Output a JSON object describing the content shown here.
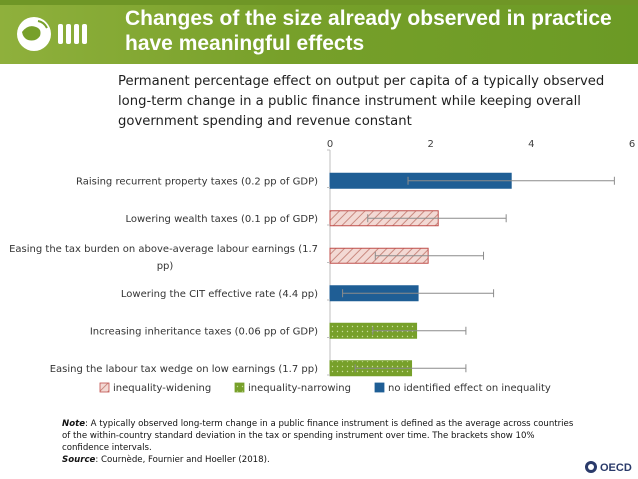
{
  "header": {
    "title_line1": "Changes of the size already observed in practice",
    "title_line2": "have meaningful effects",
    "logo_text": "OECD"
  },
  "subtitle": {
    "line1": "Permanent percentage effect on output per capita of a typically observed",
    "line2": "long-term change in a public finance instrument while keeping overall",
    "line3": "government spending  and revenue constant"
  },
  "colors": {
    "header_green": "#77a02a",
    "widening": "#e9b9b0",
    "widening_border": "#c0504d",
    "narrowing": "#77a02a",
    "no_effect": "#1f5e95",
    "error_bar": "#8c8c8c"
  },
  "chart_data": {
    "type": "bar",
    "orientation": "horizontal",
    "xlim": [
      0,
      6
    ],
    "xticks": [
      "0",
      "2",
      "4",
      "6"
    ],
    "categories": [
      {
        "label": [
          "Raising recurrent property taxes (0.2 pp of GDP)"
        ],
        "value": 3.6,
        "low": 1.55,
        "high": 5.65,
        "group": "no_effect"
      },
      {
        "label": [
          "Lowering wealth taxes (0.1 pp of GDP)"
        ],
        "value": 2.15,
        "low": 0.75,
        "high": 3.5,
        "group": "widening"
      },
      {
        "label": [
          "Easing the tax burden on above-average labour earnings (1.7",
          "pp)"
        ],
        "value": 1.95,
        "low": 0.9,
        "high": 3.05,
        "group": "widening"
      },
      {
        "label": [
          "Lowering the CIT effective rate (4.4 pp)"
        ],
        "value": 1.75,
        "low": 0.25,
        "high": 3.25,
        "group": "no_effect"
      },
      {
        "label": [
          "Increasing inheritance taxes (0.06 pp of GDP)"
        ],
        "value": 1.72,
        "low": 0.85,
        "high": 2.7,
        "group": "narrowing"
      },
      {
        "label": [
          "Easing the labour tax wedge on low earnings (1.7 pp)"
        ],
        "value": 1.62,
        "low": 0.5,
        "high": 2.7,
        "group": "narrowing"
      }
    ],
    "legend": [
      {
        "key": "widening",
        "label": "inequality-widening"
      },
      {
        "key": "narrowing",
        "label": "inequality-narrowing"
      },
      {
        "key": "no_effect",
        "label": "no identified effect on inequality"
      }
    ],
    "legend_position": "bottom"
  },
  "note": {
    "note_label": "Note",
    "note_text": ": A typically observed long-term change in a public finance instrument is defined as the average across countries of the within-country standard deviation in the tax or spending instrument over time. The brackets show 10% confidence intervals.",
    "source_label": "Source",
    "source_text": ": Cournède, Fournier and Hoeller (2018)."
  },
  "footer": {
    "oecd_text": "OECD"
  }
}
